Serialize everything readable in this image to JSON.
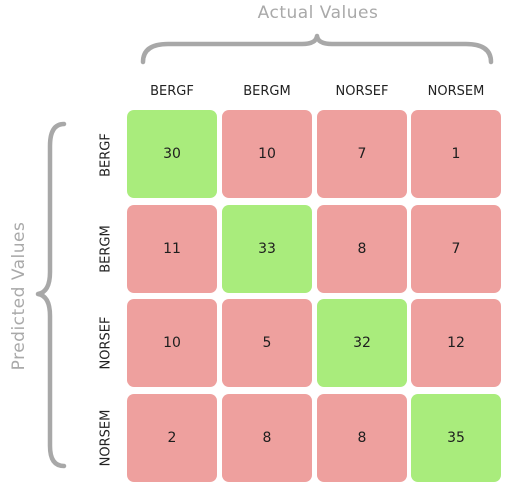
{
  "axis": {
    "actual_label": "Actual Values",
    "predicted_label": "Predicted Values"
  },
  "columns": [
    "BERGF",
    "BERGM",
    "NORSEF",
    "NORSEM"
  ],
  "rows": [
    "BERGF",
    "BERGM",
    "NORSEF",
    "NORSEM"
  ],
  "matrix": [
    [
      30,
      10,
      7,
      1
    ],
    [
      11,
      33,
      8,
      7
    ],
    [
      10,
      5,
      32,
      12
    ],
    [
      2,
      8,
      8,
      35
    ]
  ],
  "colors": {
    "correct": "#a9ec7c",
    "wrong": "#eea09e",
    "brace": "#a8a8a8"
  }
}
